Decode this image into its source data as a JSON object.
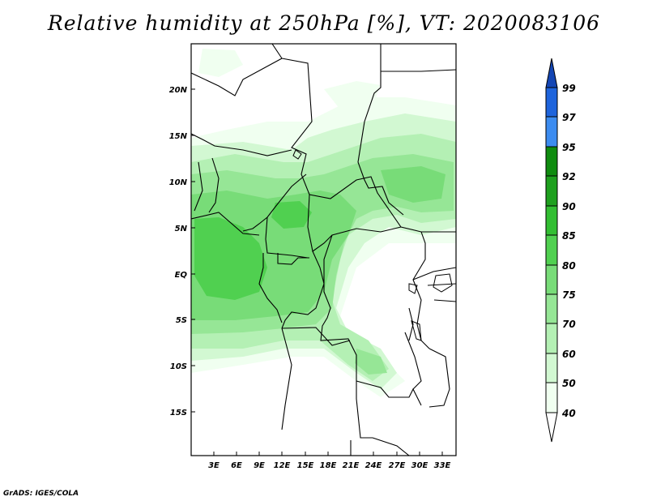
{
  "title": "Relative humidity at 250hPa [%], VT: 2020083106",
  "credit": "GrADS: IGES/COLA",
  "colors": {
    "40": "#f0fff0",
    "50": "#d2f8d2",
    "60": "#b4f0b4",
    "70": "#96e696",
    "75": "#78dc78",
    "80": "#50d050",
    "85": "#32be32",
    "90": "#1ea01e",
    "92": "#0f8c0f",
    "95": "#3c8cf0",
    "97": "#1e64dc",
    "99": "#1446b4"
  },
  "map": {
    "lat_labels": [
      "20N",
      "15N",
      "10N",
      "5N",
      "EQ",
      "5S",
      "10S",
      "15S"
    ],
    "lon_labels": [
      "3E",
      "6E",
      "9E",
      "12E",
      "15E",
      "18E",
      "21E",
      "24E",
      "27E",
      "30E",
      "33E"
    ]
  },
  "colorbar": {
    "levels": [
      "40",
      "50",
      "60",
      "70",
      "75",
      "80",
      "85",
      "90",
      "92",
      "95",
      "97",
      "99"
    ]
  }
}
